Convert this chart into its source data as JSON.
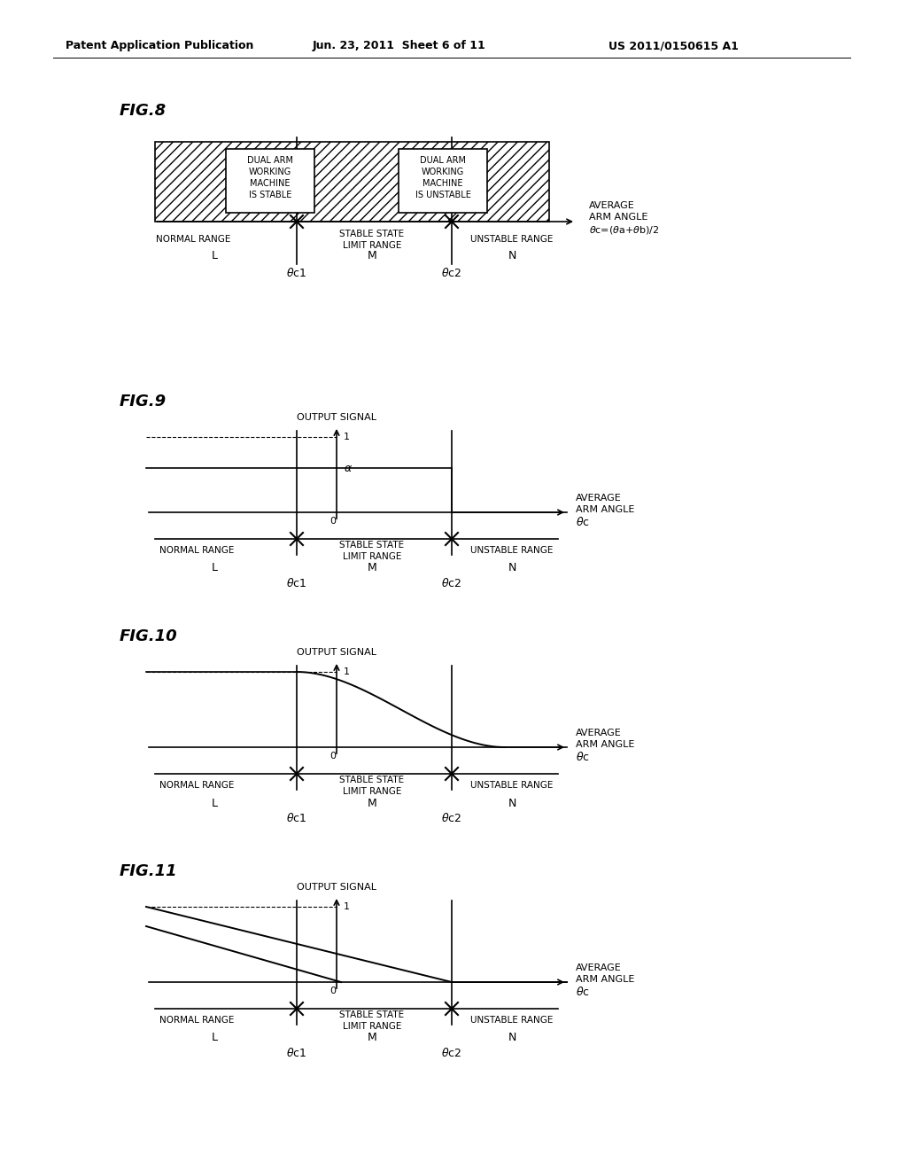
{
  "bg_color": "#ffffff",
  "header_left": "Patent Application Publication",
  "header_mid": "Jun. 23, 2011  Sheet 6 of 11",
  "header_right": "US 2011/0150615 A1",
  "text_color": "#000000"
}
